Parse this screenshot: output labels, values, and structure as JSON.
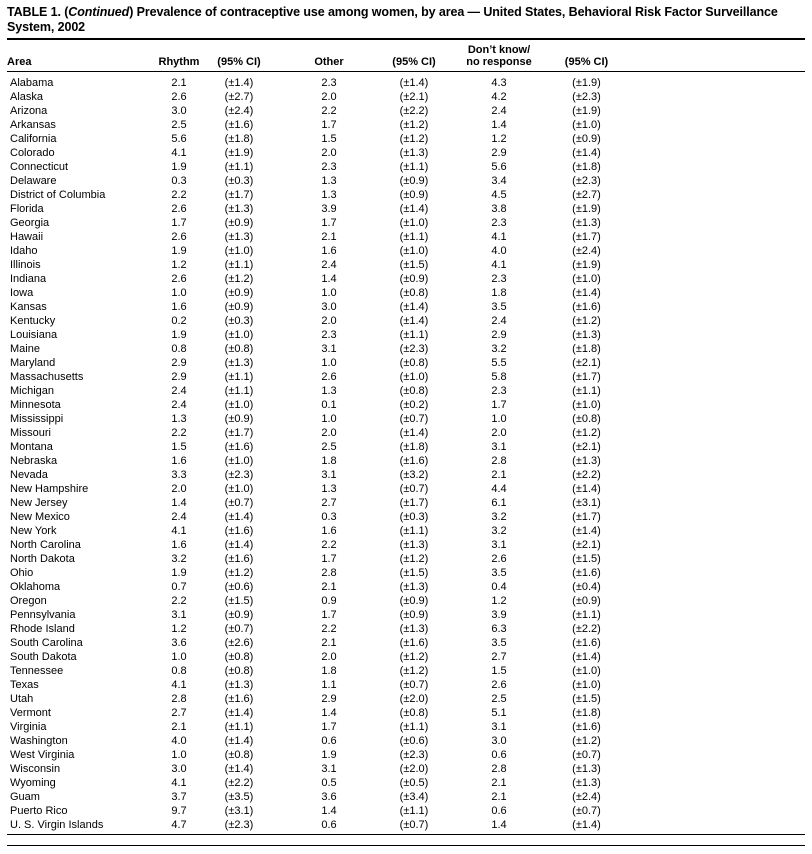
{
  "title": {
    "prefix": "TABLE 1. (",
    "continued": "Continued",
    "suffix": ") Prevalence of contraceptive use among women, by area — United States, Behavioral Risk Factor Surveillance System, 2002"
  },
  "table": {
    "columns": {
      "area": "Area",
      "rhythm": "Rhythm",
      "rhythm_ci": "(95% CI)",
      "other": "Other",
      "other_ci": "(95% CI)",
      "dont_know_line1": "Don’t know/",
      "dont_know_line2": "no response",
      "dont_know_ci": "(95% CI)"
    },
    "rows": [
      [
        "Alabama",
        "2.1",
        "(±1.4)",
        "2.3",
        "(±1.4)",
        "4.3",
        "(±1.9)"
      ],
      [
        "Alaska",
        "2.6",
        "(±2.7)",
        "2.0",
        "(±2.1)",
        "4.2",
        "(±2.3)"
      ],
      [
        "Arizona",
        "3.0",
        "(±2.4)",
        "2.2",
        "(±2.2)",
        "2.4",
        "(±1.9)"
      ],
      [
        "Arkansas",
        "2.5",
        "(±1.6)",
        "1.7",
        "(±1.2)",
        "1.4",
        "(±1.0)"
      ],
      [
        "California",
        "5.6",
        "(±1.8)",
        "1.5",
        "(±1.2)",
        "1.2",
        "(±0.9)"
      ],
      [
        "Colorado",
        "4.1",
        "(±1.9)",
        "2.0",
        "(±1.3)",
        "2.9",
        "(±1.4)"
      ],
      [
        "Connecticut",
        "1.9",
        "(±1.1)",
        "2.3",
        "(±1.1)",
        "5.6",
        "(±1.8)"
      ],
      [
        "Delaware",
        "0.3",
        "(±0.3)",
        "1.3",
        "(±0.9)",
        "3.4",
        "(±2.3)"
      ],
      [
        "District of Columbia",
        "2.2",
        "(±1.7)",
        "1.3",
        "(±0.9)",
        "4.5",
        "(±2.7)"
      ],
      [
        "Florida",
        "2.6",
        "(±1.3)",
        "3.9",
        "(±1.4)",
        "3.8",
        "(±1.9)"
      ],
      [
        "Georgia",
        "1.7",
        "(±0.9)",
        "1.7",
        "(±1.0)",
        "2.3",
        "(±1.3)"
      ],
      [
        "Hawaii",
        "2.6",
        "(±1.3)",
        "2.1",
        "(±1.1)",
        "4.1",
        "(±1.7)"
      ],
      [
        "Idaho",
        "1.9",
        "(±1.0)",
        "1.6",
        "(±1.0)",
        "4.0",
        "(±2.4)"
      ],
      [
        "Illinois",
        "1.2",
        "(±1.1)",
        "2.4",
        "(±1.5)",
        "4.1",
        "(±1.9)"
      ],
      [
        "Indiana",
        "2.6",
        "(±1.2)",
        "1.4",
        "(±0.9)",
        "2.3",
        "(±1.0)"
      ],
      [
        "Iowa",
        "1.0",
        "(±0.9)",
        "1.0",
        "(±0.8)",
        "1.8",
        "(±1.4)"
      ],
      [
        "Kansas",
        "1.6",
        "(±0.9)",
        "3.0",
        "(±1.4)",
        "3.5",
        "(±1.6)"
      ],
      [
        "Kentucky",
        "0.2",
        "(±0.3)",
        "2.0",
        "(±1.4)",
        "2.4",
        "(±1.2)"
      ],
      [
        "Louisiana",
        "1.9",
        "(±1.0)",
        "2.3",
        "(±1.1)",
        "2.9",
        "(±1.3)"
      ],
      [
        "Maine",
        "0.8",
        "(±0.8)",
        "3.1",
        "(±2.3)",
        "3.2",
        "(±1.8)"
      ],
      [
        "Maryland",
        "2.9",
        "(±1.3)",
        "1.0",
        "(±0.8)",
        "5.5",
        "(±2.1)"
      ],
      [
        "Massachusetts",
        "2.9",
        "(±1.1)",
        "2.6",
        "(±1.0)",
        "5.8",
        "(±1.7)"
      ],
      [
        "Michigan",
        "2.4",
        "(±1.1)",
        "1.3",
        "(±0.8)",
        "2.3",
        "(±1.1)"
      ],
      [
        "Minnesota",
        "2.4",
        "(±1.0)",
        "0.1",
        "(±0.2)",
        "1.7",
        "(±1.0)"
      ],
      [
        "Mississippi",
        "1.3",
        "(±0.9)",
        "1.0",
        "(±0.7)",
        "1.0",
        "(±0.8)"
      ],
      [
        "Missouri",
        "2.2",
        "(±1.7)",
        "2.0",
        "(±1.4)",
        "2.0",
        "(±1.2)"
      ],
      [
        "Montana",
        "1.5",
        "(±1.6)",
        "2.5",
        "(±1.8)",
        "3.1",
        "(±2.1)"
      ],
      [
        "Nebraska",
        "1.6",
        "(±1.0)",
        "1.8",
        "(±1.6)",
        "2.8",
        "(±1.3)"
      ],
      [
        "Nevada",
        "3.3",
        "(±2.3)",
        "3.1",
        "(±3.2)",
        "2.1",
        "(±2.2)"
      ],
      [
        "New Hampshire",
        "2.0",
        "(±1.0)",
        "1.3",
        "(±0.7)",
        "4.4",
        "(±1.4)"
      ],
      [
        "New Jersey",
        "1.4",
        "(±0.7)",
        "2.7",
        "(±1.7)",
        "6.1",
        "(±3.1)"
      ],
      [
        "New Mexico",
        "2.4",
        "(±1.4)",
        "0.3",
        "(±0.3)",
        "3.2",
        "(±1.7)"
      ],
      [
        "New York",
        "4.1",
        "(±1.6)",
        "1.6",
        "(±1.1)",
        "3.2",
        "(±1.4)"
      ],
      [
        "North Carolina",
        "1.6",
        "(±1.4)",
        "2.2",
        "(±1.3)",
        "3.1",
        "(±2.1)"
      ],
      [
        "North Dakota",
        "3.2",
        "(±1.6)",
        "1.7",
        "(±1.2)",
        "2.6",
        "(±1.5)"
      ],
      [
        "Ohio",
        "1.9",
        "(±1.2)",
        "2.8",
        "(±1.5)",
        "3.5",
        "(±1.6)"
      ],
      [
        "Oklahoma",
        "0.7",
        "(±0.6)",
        "2.1",
        "(±1.3)",
        "0.4",
        "(±0.4)"
      ],
      [
        "Oregon",
        "2.2",
        "(±1.5)",
        "0.9",
        "(±0.9)",
        "1.2",
        "(±0.9)"
      ],
      [
        "Pennsylvania",
        "3.1",
        "(±0.9)",
        "1.7",
        "(±0.9)",
        "3.9",
        "(±1.1)"
      ],
      [
        "Rhode Island",
        "1.2",
        "(±0.7)",
        "2.2",
        "(±1.3)",
        "6.3",
        "(±2.2)"
      ],
      [
        "South Carolina",
        "3.6",
        "(±2.6)",
        "2.1",
        "(±1.6)",
        "3.5",
        "(±1.6)"
      ],
      [
        "South Dakota",
        "1.0",
        "(±0.8)",
        "2.0",
        "(±1.2)",
        "2.7",
        "(±1.4)"
      ],
      [
        "Tennessee",
        "0.8",
        "(±0.8)",
        "1.8",
        "(±1.2)",
        "1.5",
        "(±1.0)"
      ],
      [
        "Texas",
        "4.1",
        "(±1.3)",
        "1.1",
        "(±0.7)",
        "2.6",
        "(±1.0)"
      ],
      [
        "Utah",
        "2.8",
        "(±1.6)",
        "2.9",
        "(±2.0)",
        "2.5",
        "(±1.5)"
      ],
      [
        "Vermont",
        "2.7",
        "(±1.4)",
        "1.4",
        "(±0.8)",
        "5.1",
        "(±1.8)"
      ],
      [
        "Virginia",
        "2.1",
        "(±1.1)",
        "1.7",
        "(±1.1)",
        "3.1",
        "(±1.6)"
      ],
      [
        "Washington",
        "4.0",
        "(±1.4)",
        "0.6",
        "(±0.6)",
        "3.0",
        "(±1.2)"
      ],
      [
        "West Virginia",
        "1.0",
        "(±0.8)",
        "1.9",
        "(±2.3)",
        "0.6",
        "(±0.7)"
      ],
      [
        "Wisconsin",
        "3.0",
        "(±1.4)",
        "3.1",
        "(±2.0)",
        "2.8",
        "(±1.3)"
      ],
      [
        "Wyoming",
        "4.1",
        "(±2.2)",
        "0.5",
        "(±0.5)",
        "2.1",
        "(±1.3)"
      ],
      [
        "Guam",
        "3.7",
        "(±3.5)",
        "3.6",
        "(±3.4)",
        "2.1",
        "(±2.4)"
      ],
      [
        "Puerto Rico",
        "9.7",
        "(±3.1)",
        "1.4",
        "(±1.1)",
        "0.6",
        "(±0.7)"
      ],
      [
        "U. S. Virgin Islands",
        "4.7",
        "(±2.3)",
        "0.6",
        "(±0.7)",
        "1.4",
        "(±1.4)"
      ]
    ]
  }
}
